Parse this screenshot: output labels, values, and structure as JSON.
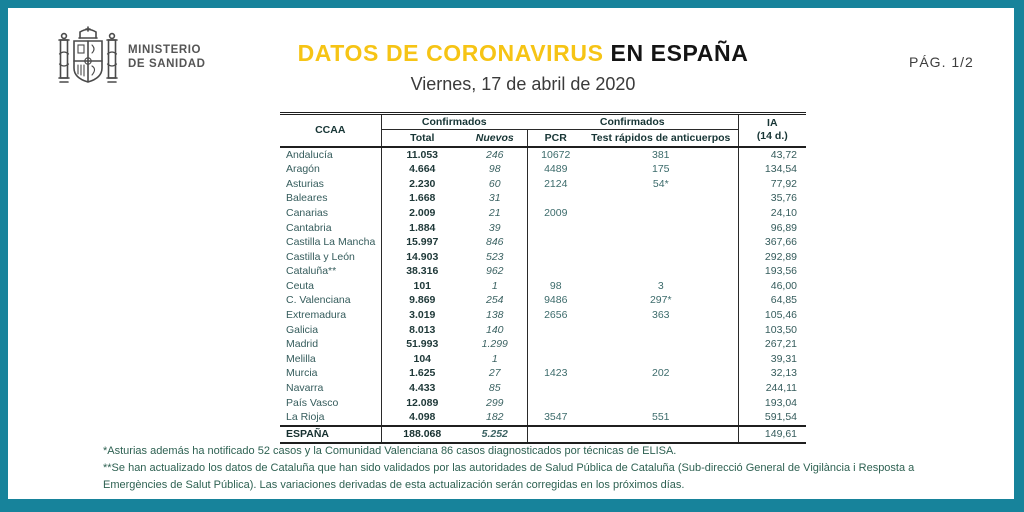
{
  "page": {
    "pagination": "PÁG. 1/2"
  },
  "header": {
    "ministry_line1": "MINISTERIO",
    "ministry_line2": "DE SANIDAD",
    "title_highlight": "DATOS DE CORONAVIRUS",
    "title_rest": "EN ESPAÑA",
    "subtitle": "Viernes, 17 de abril de 2020"
  },
  "colors": {
    "frame_teal": "#17839b",
    "title_yellow": "#f6c415",
    "title_black": "#141414",
    "table_text_green": "#3c6363",
    "notes_green": "#2e6152"
  },
  "table": {
    "header": {
      "ccaa": "CCAA",
      "group_confirmados_1": "Confirmados",
      "group_confirmados_2": "Confirmados",
      "sub_total": "Total",
      "sub_nuevos": "Nuevos",
      "sub_pcr": "PCR",
      "sub_test": "Test rápidos de anticuerpos",
      "ia_line1": "IA",
      "ia_line2": "(14 d.)"
    },
    "rows": [
      {
        "ccaa": "Andalucía",
        "total": "11.053",
        "nuevos": "246",
        "pcr": "10672",
        "test": "381",
        "ia": "43,72"
      },
      {
        "ccaa": "Aragón",
        "total": "4.664",
        "nuevos": "98",
        "pcr": "4489",
        "test": "175",
        "ia": "134,54"
      },
      {
        "ccaa": "Asturias",
        "total": "2.230",
        "nuevos": "60",
        "pcr": "2124",
        "test": "54*",
        "ia": "77,92"
      },
      {
        "ccaa": "Baleares",
        "total": "1.668",
        "nuevos": "31",
        "pcr": "",
        "test": "",
        "ia": "35,76"
      },
      {
        "ccaa": "Canarias",
        "total": "2.009",
        "nuevos": "21",
        "pcr": "2009",
        "test": "",
        "ia": "24,10"
      },
      {
        "ccaa": "Cantabria",
        "total": "1.884",
        "nuevos": "39",
        "pcr": "",
        "test": "",
        "ia": "96,89"
      },
      {
        "ccaa": "Castilla La Mancha",
        "total": "15.997",
        "nuevos": "846",
        "pcr": "",
        "test": "",
        "ia": "367,66"
      },
      {
        "ccaa": "Castilla y León",
        "total": "14.903",
        "nuevos": "523",
        "pcr": "",
        "test": "",
        "ia": "292,89"
      },
      {
        "ccaa": "Cataluña**",
        "total": "38.316",
        "nuevos": "962",
        "pcr": "",
        "test": "",
        "ia": "193,56"
      },
      {
        "ccaa": "Ceuta",
        "total": "101",
        "nuevos": "1",
        "pcr": "98",
        "test": "3",
        "ia": "46,00"
      },
      {
        "ccaa": "C. Valenciana",
        "total": "9.869",
        "nuevos": "254",
        "pcr": "9486",
        "test": "297*",
        "ia": "64,85"
      },
      {
        "ccaa": "Extremadura",
        "total": "3.019",
        "nuevos": "138",
        "pcr": "2656",
        "test": "363",
        "ia": "105,46"
      },
      {
        "ccaa": "Galicia",
        "total": "8.013",
        "nuevos": "140",
        "pcr": "",
        "test": "",
        "ia": "103,50"
      },
      {
        "ccaa": "Madrid",
        "total": "51.993",
        "nuevos": "1.299",
        "pcr": "",
        "test": "",
        "ia": "267,21"
      },
      {
        "ccaa": "Melilla",
        "total": "104",
        "nuevos": "1",
        "pcr": "",
        "test": "",
        "ia": "39,31"
      },
      {
        "ccaa": "Murcia",
        "total": "1.625",
        "nuevos": "27",
        "pcr": "1423",
        "test": "202",
        "ia": "32,13"
      },
      {
        "ccaa": "Navarra",
        "total": "4.433",
        "nuevos": "85",
        "pcr": "",
        "test": "",
        "ia": "244,11"
      },
      {
        "ccaa": "País Vasco",
        "total": "12.089",
        "nuevos": "299",
        "pcr": "",
        "test": "",
        "ia": "193,04"
      },
      {
        "ccaa": "La Rioja",
        "total": "4.098",
        "nuevos": "182",
        "pcr": "3547",
        "test": "551",
        "ia": "591,54"
      }
    ],
    "total_row": {
      "ccaa": "ESPAÑA",
      "total": "188.068",
      "nuevos": "5.252",
      "pcr": "",
      "test": "",
      "ia": "149,61"
    }
  },
  "notes": [
    "*Asturias además ha notificado 52 casos y la Comunidad Valenciana 86 casos  diagnosticados por técnicas de ELISA.",
    "**Se han actualizado los datos de Cataluña que han sido validados por las autoridades de Salud Pública de Cataluña (Sub-direcció General de Vigilància i Resposta a Emergències de Salut Pública).  Las variaciones derivadas de esta actualización serán corregidas en los próximos días."
  ]
}
